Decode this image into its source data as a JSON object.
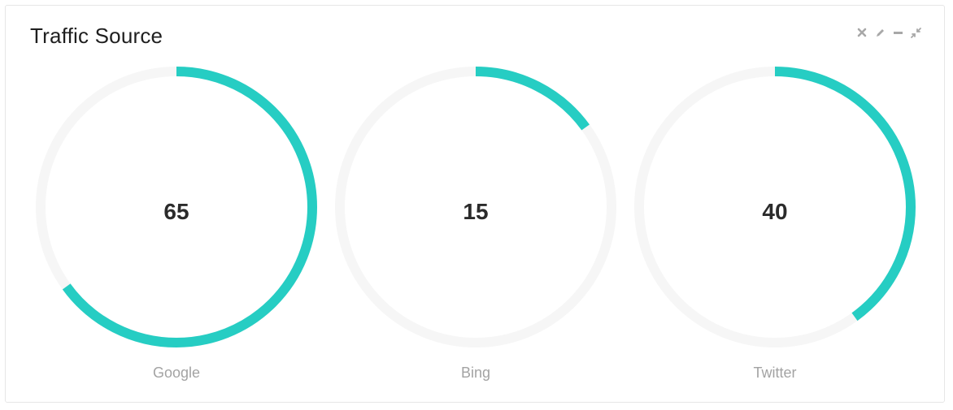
{
  "panel": {
    "title": "Traffic Source",
    "controls": [
      {
        "name": "close-icon"
      },
      {
        "name": "pencil-icon"
      },
      {
        "name": "minus-icon"
      },
      {
        "name": "compress-icon"
      }
    ]
  },
  "gauges": [
    {
      "label": "Google",
      "value": "65",
      "fraction": 0.65
    },
    {
      "label": "Bing",
      "value": "15",
      "fraction": 0.15
    },
    {
      "label": "Twitter",
      "value": "40",
      "fraction": 0.4
    }
  ],
  "colors": {
    "accent": "#26cdc3",
    "track": "#f6f6f6"
  }
}
